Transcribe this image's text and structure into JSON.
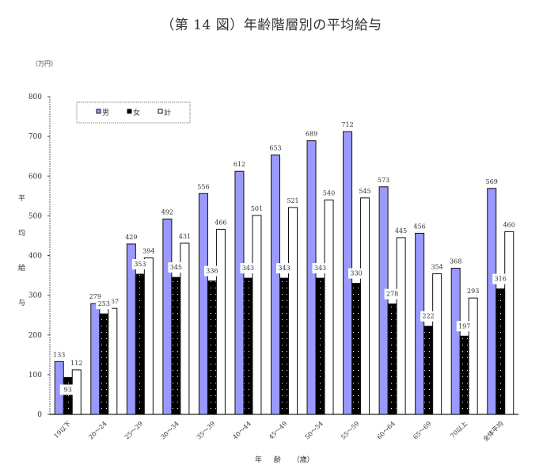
{
  "header": {
    "title": "（第 14 図）年齢階層別の平均給与",
    "unit": "（万円）",
    "ylabel_chars": [
      "平",
      "均",
      "給",
      "与"
    ],
    "xlabel": "年 齢 （歳）"
  },
  "colors": {
    "male": "#9999ff",
    "female": "#000000",
    "total": "#ffffff",
    "axis": "#333333"
  },
  "chart_data": {
    "type": "bar",
    "title": "（第 14 図）年齢階層別の平均給与",
    "xlabel": "年齢（歳）",
    "ylabel": "平均給与",
    "unit": "万円",
    "ylim": [
      0,
      800
    ],
    "yticks": [
      0,
      100,
      200,
      300,
      400,
      500,
      600,
      700,
      800
    ],
    "grid": false,
    "legend_position": "top-left inside",
    "categories": [
      "19以下",
      "20～24",
      "25～29",
      "30～34",
      "35～39",
      "40～44",
      "45～49",
      "50～54",
      "55～59",
      "60～64",
      "65～69",
      "70以上",
      "全体平均"
    ],
    "series": [
      {
        "name": "男",
        "values": [
          133,
          279,
          429,
          492,
          556,
          612,
          653,
          689,
          712,
          573,
          456,
          368,
          569
        ]
      },
      {
        "name": "女",
        "values": [
          93,
          253,
          353,
          345,
          336,
          343,
          343,
          343,
          330,
          278,
          222,
          197,
          316
        ]
      },
      {
        "name": "計",
        "values": [
          112,
          267,
          394,
          431,
          466,
          501,
          521,
          540,
          545,
          445,
          354,
          293,
          460
        ]
      }
    ]
  },
  "legend": [
    {
      "label": "男",
      "color": "#9999ff"
    },
    {
      "label": "女",
      "color": "#000000"
    },
    {
      "label": "計",
      "color": "#ffffff"
    }
  ]
}
